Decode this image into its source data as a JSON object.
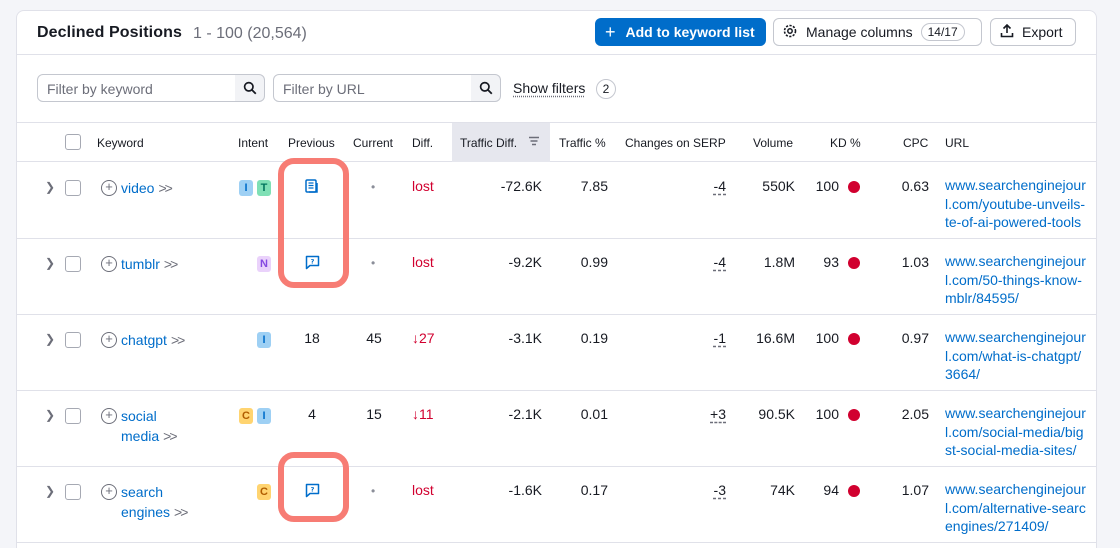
{
  "header": {
    "title": "Declined Positions",
    "range": "1 - 100 (20,564)",
    "add_button": "Add to keyword list",
    "manage_button": "Manage columns",
    "manage_count": "14/17",
    "export_button": "Export"
  },
  "filters": {
    "keyword_placeholder": "Filter by keyword",
    "url_placeholder": "Filter by URL",
    "show_filters": "Show filters",
    "show_filters_count": "2"
  },
  "columns": [
    "Keyword",
    "Intent",
    "Previous",
    "Current",
    "Diff.",
    "Traffic Diff.",
    "Traffic %",
    "Changes on SERP",
    "Volume",
    "KD %",
    "CPC",
    "URL"
  ],
  "rows": [
    {
      "keyword_line1": "video",
      "keyword_line2": "",
      "intents": [
        "I",
        "T"
      ],
      "previous": "",
      "previous_icon": "news-icon",
      "current": "•",
      "diff": "lost",
      "traffic_diff": "-72.6K",
      "traffic_pct": "7.85",
      "serp_change": "-4",
      "volume": "550K",
      "kd": "100",
      "cpc": "0.63",
      "url": [
        "www.searchenginejour",
        "l.com/youtube-unveils-",
        "te-of-ai-powered-tools"
      ]
    },
    {
      "keyword_line1": "tumblr",
      "keyword_line2": "",
      "intents": [
        "N"
      ],
      "previous": "",
      "previous_icon": "faq-icon",
      "current": "•",
      "diff": "lost",
      "traffic_diff": "-9.2K",
      "traffic_pct": "0.99",
      "serp_change": "-4",
      "volume": "1.8M",
      "kd": "93",
      "cpc": "1.03",
      "url": [
        "www.searchenginejour",
        "l.com/50-things-know-",
        "mblr/84595/"
      ]
    },
    {
      "keyword_line1": "chatgpt",
      "keyword_line2": "",
      "intents": [
        "I"
      ],
      "previous": "18",
      "previous_icon": "",
      "current": "45",
      "diff": "27",
      "traffic_diff": "-3.1K",
      "traffic_pct": "0.19",
      "serp_change": "-1",
      "volume": "16.6M",
      "kd": "100",
      "cpc": "0.97",
      "url": [
        "www.searchenginejour",
        "l.com/what-is-chatgpt/",
        "3664/"
      ]
    },
    {
      "keyword_line1": "social",
      "keyword_line2": "media",
      "intents": [
        "C",
        "I"
      ],
      "previous": "4",
      "previous_icon": "",
      "current": "15",
      "diff": "11",
      "traffic_diff": "-2.1K",
      "traffic_pct": "0.01",
      "serp_change": "+3",
      "volume": "90.5K",
      "kd": "100",
      "cpc": "2.05",
      "url": [
        "www.searchenginejour",
        "l.com/social-media/big",
        "st-social-media-sites/"
      ]
    },
    {
      "keyword_line1": "search",
      "keyword_line2": "engines",
      "intents": [
        "C"
      ],
      "previous": "",
      "previous_icon": "faq-icon",
      "current": "•",
      "diff": "lost",
      "traffic_diff": "-1.6K",
      "traffic_pct": "0.17",
      "serp_change": "-3",
      "volume": "74K",
      "kd": "94",
      "cpc": "1.07",
      "url": [
        "www.searchenginejour",
        "l.com/alternative-searc",
        "engines/271409/"
      ]
    }
  ],
  "colors": {
    "accent": "#006dca",
    "negative": "#d1002f",
    "highlight": "#f77c74"
  }
}
